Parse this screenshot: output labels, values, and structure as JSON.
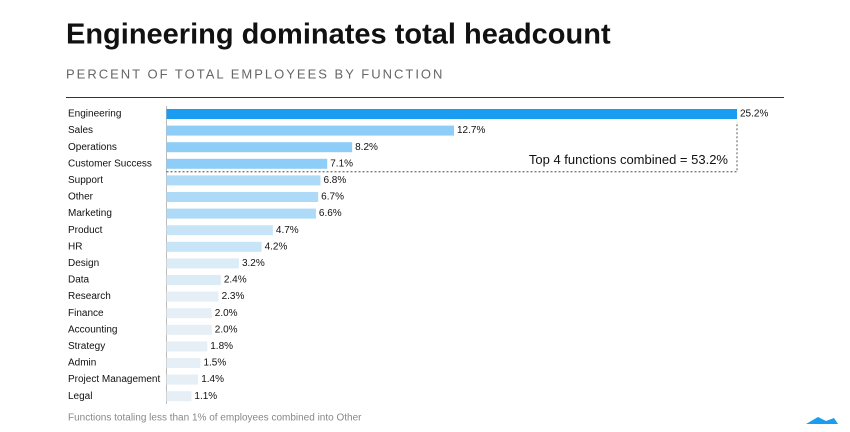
{
  "chart_data": {
    "type": "bar",
    "orientation": "horizontal",
    "title": "Engineering dominates total headcount",
    "subtitle": "PERCENT OF TOTAL EMPLOYEES BY FUNCTION",
    "categories": [
      "Engineering",
      "Sales",
      "Operations",
      "Customer Success",
      "Support",
      "Other",
      "Marketing",
      "Product",
      "HR",
      "Design",
      "Data",
      "Research",
      "Finance",
      "Accounting",
      "Strategy",
      "Admin",
      "Project Management",
      "Legal"
    ],
    "values": [
      25.2,
      12.7,
      8.2,
      7.1,
      6.8,
      6.7,
      6.6,
      4.7,
      4.2,
      3.2,
      2.4,
      2.3,
      2.0,
      2.0,
      1.8,
      1.5,
      1.4,
      1.1
    ],
    "value_labels": [
      "25.2%",
      "12.7%",
      "8.2%",
      "7.1%",
      "6.8%",
      "6.7%",
      "6.6%",
      "4.7%",
      "4.2%",
      "3.2%",
      "2.4%",
      "2.3%",
      "2.0%",
      "2.0%",
      "1.8%",
      "1.5%",
      "1.4%",
      "1.1%"
    ],
    "colors": [
      "#1a9cf0",
      "#8ecdf8",
      "#8ecdf8",
      "#8ecdf8",
      "#acdaf7",
      "#acdaf7",
      "#acdaf7",
      "#c8e5f8",
      "#c8e5f8",
      "#dcecf6",
      "#dcecf6",
      "#e6eff5",
      "#e6eff5",
      "#e6eff5",
      "#e6eff5",
      "#e6eff5",
      "#e6eff5",
      "#e6eff5"
    ],
    "annotation": "Top 4 functions combined = 53.2%",
    "footnote": "Functions totaling less than 1% of employees combined into Other"
  }
}
